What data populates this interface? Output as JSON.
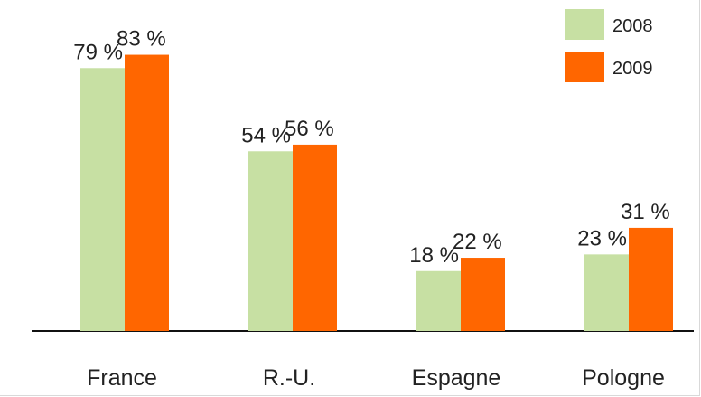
{
  "chart_data": {
    "type": "bar",
    "categories": [
      "France",
      "R.-U.",
      "Espagne",
      "Pologne"
    ],
    "series": [
      {
        "name": "2008",
        "values": [
          79,
          54,
          18,
          23
        ],
        "color": "#c7e0a3",
        "labels": [
          "79 %",
          "54 %",
          "18 %",
          "23 %"
        ]
      },
      {
        "name": "2009",
        "values": [
          83,
          56,
          22,
          31
        ],
        "color": "#ff6600",
        "labels": [
          "83 %",
          "56 %",
          "22 %",
          "31 %"
        ]
      }
    ],
    "ylim": [
      0,
      100
    ],
    "grid": false,
    "legend": "top-right",
    "title": "",
    "xlabel": "",
    "ylabel": ""
  }
}
